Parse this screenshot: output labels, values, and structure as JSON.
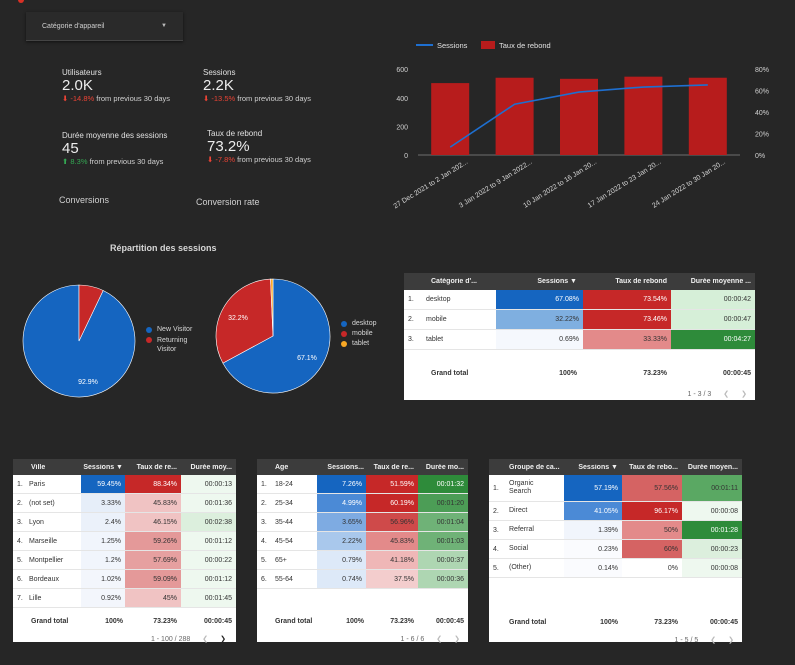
{
  "filter": {
    "label": "Catégorie d'appareil"
  },
  "kpis": [
    {
      "title": "Utilisateurs",
      "value": "2.0K",
      "change": "-14.8%",
      "suffix": "from previous 30 days",
      "dir": "down"
    },
    {
      "title": "Sessions",
      "value": "2.2K",
      "change": "-13.5%",
      "suffix": "from previous 30 days",
      "dir": "down"
    },
    {
      "title": "Durée moyenne des sessions",
      "value": "45",
      "change": "8.3%",
      "suffix": "from previous 30 days",
      "dir": "up"
    },
    {
      "title": "Taux de rebond",
      "value": "73.2%",
      "change": "-7.8%",
      "suffix": "from previous 30 days",
      "dir": "down"
    }
  ],
  "labels": {
    "conversions": "Conversions",
    "conversion_rate": "Conversion rate",
    "pie_title": "Répartition des sessions"
  },
  "colors": {
    "blue": "#1565c0",
    "red": "#c62828",
    "orange": "#f9a825",
    "line": "#1e6fd0",
    "bar": "#b71c1c"
  },
  "chart_data": [
    {
      "type": "bar",
      "categories": [
        "27 Dec 2021 to 2 Jan 202...",
        "3 Jan 2022 to 9 Jan 2022...",
        "10 Jan 2022 to 16 Jan 20...",
        "17 Jan 2022 to 23 Jan 20...",
        "24 Jan 2022 to 30 Jan 20..."
      ],
      "series": [
        {
          "name": "Sessions",
          "type": "line",
          "axis": "left",
          "values": [
            55,
            355,
            440,
            475,
            490
          ]
        },
        {
          "name": "Taux de rebond",
          "type": "bar",
          "axis": "right",
          "values": [
            67,
            72,
            71,
            73,
            72
          ]
        }
      ],
      "y_left": {
        "ticks": [
          "0",
          "200",
          "400",
          "600"
        ],
        "range": [
          0,
          650
        ]
      },
      "y_right": {
        "ticks": [
          "0%",
          "20%",
          "40%",
          "60%",
          "80%"
        ],
        "range": [
          0,
          86.67
        ]
      }
    },
    {
      "type": "pie",
      "slices": [
        {
          "label": "New Visitor",
          "value": 92.9,
          "pct": "92.9%",
          "color": "#1565c0"
        },
        {
          "label": "Returning Visitor",
          "value": 7.1,
          "pct": "",
          "color": "#c62828"
        }
      ]
    },
    {
      "type": "pie",
      "slices": [
        {
          "label": "desktop",
          "value": 67.1,
          "pct": "67.1%",
          "color": "#1565c0"
        },
        {
          "label": "mobile",
          "value": 32.2,
          "pct": "32.2%",
          "color": "#c62828"
        },
        {
          "label": "tablet",
          "value": 0.7,
          "pct": "",
          "color": "#f9a825"
        }
      ]
    }
  ],
  "device_table": {
    "headers": [
      "Catégorie d'...",
      "Sessions ▼",
      "Taux de rebond",
      "Durée moyenne ..."
    ],
    "rows": [
      {
        "idx": "1.",
        "name": "desktop",
        "sessions": "67.08%",
        "bounce": "73.54%",
        "duration": "00:00:42",
        "s_bg": "#1565c0",
        "b_bg": "#c62828",
        "d_bg": "#d6efd8"
      },
      {
        "idx": "2.",
        "name": "mobile",
        "sessions": "32.22%",
        "bounce": "73.46%",
        "duration": "00:00:47",
        "s_bg": "#7fafe0",
        "b_bg": "#c62828",
        "d_bg": "#d6efd8"
      },
      {
        "idx": "3.",
        "name": "tablet",
        "sessions": "0.69%",
        "bounce": "33.33%",
        "duration": "00:04:27",
        "s_bg": "#f5f8fd",
        "b_bg": "#e38a8a",
        "d_bg": "#2e8b3a"
      }
    ],
    "total": {
      "label": "Grand total",
      "sessions": "100%",
      "bounce": "73.23%",
      "duration": "00:00:45"
    },
    "pager": "1 - 3 / 3"
  },
  "city_table": {
    "headers": [
      "Ville",
      "Sessions ▼",
      "Taux de re...",
      "Durée moy..."
    ],
    "rows": [
      {
        "idx": "1.",
        "name": "Paris",
        "sessions": "59.45%",
        "bounce": "88.34%",
        "duration": "00:00:13",
        "s_bg": "#1565c0",
        "b_bg": "#c62828",
        "d_bg": "#eef8ef"
      },
      {
        "idx": "2.",
        "name": "(not set)",
        "sessions": "3.33%",
        "bounce": "45.83%",
        "duration": "00:01:36",
        "s_bg": "#e6eef9",
        "b_bg": "#f0c3c3",
        "d_bg": "#eef8ef"
      },
      {
        "idx": "3.",
        "name": "Lyon",
        "sessions": "2.4%",
        "bounce": "46.15%",
        "duration": "00:02:38",
        "s_bg": "#ebf1fa",
        "b_bg": "#f0c3c3",
        "d_bg": "#dcefdd"
      },
      {
        "idx": "4.",
        "name": "Marseille",
        "sessions": "1.25%",
        "bounce": "59.26%",
        "duration": "00:01:12",
        "s_bg": "#f1f5fc",
        "b_bg": "#e49999",
        "d_bg": "#eef8ef"
      },
      {
        "idx": "5.",
        "name": "Montpellier",
        "sessions": "1.2%",
        "bounce": "57.69%",
        "duration": "00:00:22",
        "s_bg": "#f1f5fc",
        "b_bg": "#e6a0a0",
        "d_bg": "#eef8ef"
      },
      {
        "idx": "6.",
        "name": "Bordeaux",
        "sessions": "1.02%",
        "bounce": "59.09%",
        "duration": "00:01:12",
        "s_bg": "#f3f6fc",
        "b_bg": "#e49999",
        "d_bg": "#eef8ef"
      },
      {
        "idx": "7.",
        "name": "Lille",
        "sessions": "0.92%",
        "bounce": "45%",
        "duration": "00:01:45",
        "s_bg": "#f3f6fc",
        "b_bg": "#f0c3c3",
        "d_bg": "#eef8ef"
      }
    ],
    "total": {
      "label": "Grand total",
      "sessions": "100%",
      "bounce": "73.23%",
      "duration": "00:00:45"
    },
    "pager": "1 - 100 / 288"
  },
  "age_table": {
    "headers": [
      "Âge",
      "Sessions...",
      "Taux de re...",
      "Durée mo..."
    ],
    "rows": [
      {
        "idx": "1.",
        "name": "18-24",
        "sessions": "7.26%",
        "bounce": "51.59%",
        "duration": "00:01:32",
        "s_bg": "#1565c0",
        "b_bg": "#c62828",
        "d_bg": "#2e8b3a"
      },
      {
        "idx": "2.",
        "name": "25-34",
        "sessions": "4.99%",
        "bounce": "60.19%",
        "duration": "00:01:20",
        "s_bg": "#4b8ad6",
        "b_bg": "#c62828",
        "d_bg": "#4c9d56"
      },
      {
        "idx": "3.",
        "name": "35-44",
        "sessions": "3.65%",
        "bounce": "56.96%",
        "duration": "00:01:04",
        "s_bg": "#7eabe2",
        "b_bg": "#cf4a4a",
        "d_bg": "#6fb277"
      },
      {
        "idx": "4.",
        "name": "45-54",
        "sessions": "2.22%",
        "bounce": "45.83%",
        "duration": "00:01:03",
        "s_bg": "#a9c8ec",
        "b_bg": "#e38a8a",
        "d_bg": "#6fb277"
      },
      {
        "idx": "5.",
        "name": "65+",
        "sessions": "0.79%",
        "bounce": "41.18%",
        "duration": "00:00:37",
        "s_bg": "#dde9f8",
        "b_bg": "#efb7b7",
        "d_bg": "#aed6b2"
      },
      {
        "idx": "6.",
        "name": "55-64",
        "sessions": "0.74%",
        "bounce": "37.5%",
        "duration": "00:00:36",
        "s_bg": "#dde9f8",
        "b_bg": "#f3cdcd",
        "d_bg": "#aed6b2"
      }
    ],
    "total": {
      "label": "Grand total",
      "sessions": "100%",
      "bounce": "73.23%",
      "duration": "00:00:45"
    },
    "pager": "1 - 6 / 6"
  },
  "channel_table": {
    "headers": [
      "Groupe de ca...",
      "Sessions ▼",
      "Taux de rebo...",
      "Durée moyen..."
    ],
    "rows": [
      {
        "idx": "1.",
        "name": "Organic Search",
        "sessions": "57.19%",
        "bounce": "57.56%",
        "duration": "00:01:11",
        "s_bg": "#1565c0",
        "b_bg": "#d56363",
        "d_bg": "#5aa863"
      },
      {
        "idx": "2.",
        "name": "Direct",
        "sessions": "41.05%",
        "bounce": "96.17%",
        "duration": "00:00:08",
        "s_bg": "#4b8ad6",
        "b_bg": "#c62828",
        "d_bg": "#eef8ef"
      },
      {
        "idx": "3.",
        "name": "Referral",
        "sessions": "1.39%",
        "bounce": "50%",
        "duration": "00:01:28",
        "s_bg": "#f1f5fc",
        "b_bg": "#e38a8a",
        "d_bg": "#2e8b3a"
      },
      {
        "idx": "4.",
        "name": "Social",
        "sessions": "0.23%",
        "bounce": "60%",
        "duration": "00:00:23",
        "s_bg": "#fafbfe",
        "b_bg": "#d56363",
        "d_bg": "#dcefdd"
      },
      {
        "idx": "5.",
        "name": "(Other)",
        "sessions": "0.14%",
        "bounce": "0%",
        "duration": "00:00:08",
        "s_bg": "#fafbfe",
        "b_bg": "#ffffff",
        "d_bg": "#eef8ef"
      }
    ],
    "total": {
      "label": "Grand total",
      "sessions": "100%",
      "bounce": "73.23%",
      "duration": "00:00:45"
    },
    "pager": "1 - 5 / 5"
  }
}
